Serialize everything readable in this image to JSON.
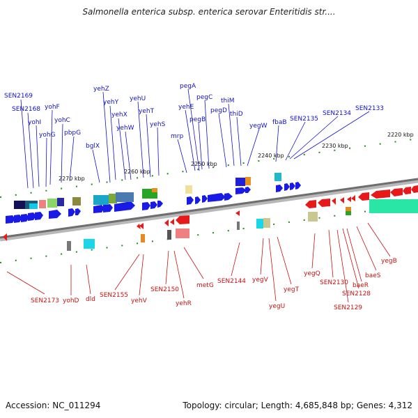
{
  "title": "Salmonella enterica subsp. enterica serovar Enteritidis str....",
  "footer": {
    "accession": "Accession: NC_011294",
    "summary": "Topology: circular; Length: 4,685,848 bp; Genes: 4,312"
  },
  "colors": {
    "plus_strand": "#1010cc",
    "minus_strand": "#cc1010",
    "backbone": "#8a8a8a"
  },
  "scale_labels": [
    "2270 kbp",
    "2260 kbp",
    "2250 kbp",
    "2240 kbp",
    "2230 kbp",
    "2220 kbp"
  ],
  "plus_labels": [
    "SEN2169",
    "SEN2168",
    "yohI",
    "yohF",
    "yohG",
    "yohC",
    "pbpG",
    "yehZ",
    "bglX",
    "yehY",
    "yehX",
    "yehW",
    "yehU",
    "yehT",
    "yehS",
    "pegA",
    "yehE",
    "mrp",
    "pegB",
    "pegC",
    "pegD",
    "thiM",
    "thiD",
    "yegW",
    "fbaB",
    "SEN2135",
    "SEN2134",
    "SEN2133"
  ],
  "minus_labels": [
    "SEN2173",
    "yohD",
    "dld",
    "SEN2155",
    "yehV",
    "SEN2150",
    "yehR",
    "metG",
    "SEN2144",
    "yegV",
    "yegU",
    "yegT",
    "yegQ",
    "SEN2130",
    "SEN2129",
    "SEN2128",
    "baeR",
    "baeS",
    "yegB"
  ]
}
